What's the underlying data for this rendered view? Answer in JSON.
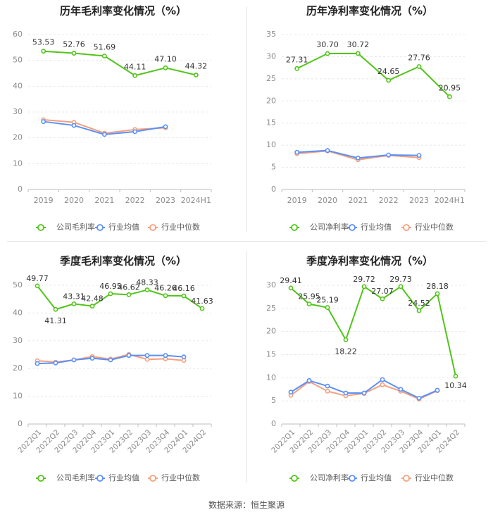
{
  "colors": {
    "company": "#52C41A",
    "industry_avg": "#5B8FF9",
    "industry_median": "#F4A07E",
    "grid": "#e8e8e8",
    "axis_text": "#8c8c8c",
    "label_text": "#333333"
  },
  "source": "数据来源：恒生聚源",
  "chart_data": [
    {
      "type": "line",
      "title": "历年毛利率变化情况（%）",
      "categories": [
        "2019",
        "2020",
        "2021",
        "2022",
        "2023",
        "2024H1"
      ],
      "ylim": [
        0,
        60
      ],
      "yticks": [
        "0",
        "10",
        "20",
        "30",
        "40",
        "50",
        "60"
      ],
      "series": [
        {
          "name": "公司毛利率",
          "key": "company",
          "values": [
            53.53,
            52.76,
            51.69,
            44.11,
            47.1,
            44.32
          ],
          "labels": [
            "53.53",
            "52.76",
            "51.69",
            "44.11",
            "47.10",
            "44.32"
          ]
        },
        {
          "name": "行业均值",
          "key": "industry_avg",
          "values": [
            26.3,
            24.8,
            21.3,
            22.4,
            24.3,
            null
          ]
        },
        {
          "name": "行业中位数",
          "key": "industry_median",
          "values": [
            27.0,
            26.0,
            21.8,
            23.2,
            23.9,
            null
          ]
        }
      ]
    },
    {
      "type": "line",
      "title": "历年净利率变化情况（%）",
      "categories": [
        "2019",
        "2020",
        "2021",
        "2022",
        "2023",
        "2024H1"
      ],
      "ylim": [
        0,
        35
      ],
      "yticks": [
        "0",
        "5",
        "10",
        "15",
        "20",
        "25",
        "30",
        "35"
      ],
      "series": [
        {
          "name": "公司净利率",
          "key": "company",
          "values": [
            27.31,
            30.7,
            30.72,
            24.65,
            27.76,
            20.95
          ],
          "labels": [
            "27.31",
            "30.70",
            "30.72",
            "24.65",
            "27.76",
            "20.95"
          ]
        },
        {
          "name": "行业均值",
          "key": "industry_avg",
          "values": [
            8.4,
            8.8,
            7.1,
            7.8,
            7.7,
            null
          ]
        },
        {
          "name": "行业中位数",
          "key": "industry_median",
          "values": [
            8.1,
            8.7,
            6.7,
            7.7,
            7.2,
            null
          ]
        }
      ]
    },
    {
      "type": "line",
      "title": "季度毛利率变化情况（%）",
      "categories": [
        "2022Q1",
        "2022Q2",
        "2022Q3",
        "2022Q4",
        "2023Q1",
        "2023Q2",
        "2023Q3",
        "2023Q4",
        "2024Q1",
        "2024Q2"
      ],
      "ylim": [
        0,
        50
      ],
      "yticks": [
        "0",
        "10",
        "20",
        "30",
        "40",
        "50"
      ],
      "series": [
        {
          "name": "公司毛利率",
          "key": "company",
          "values": [
            49.77,
            41.31,
            43.31,
            42.48,
            46.95,
            46.62,
            48.33,
            46.26,
            46.16,
            41.63
          ],
          "labels": [
            "49.77",
            "41.31",
            "43.31",
            "42.48",
            "46.95",
            "46.62",
            "48.33",
            "46.26",
            "46.16",
            "41.63"
          ]
        },
        {
          "name": "行业均值",
          "key": "industry_avg",
          "values": [
            21.8,
            22.0,
            23.1,
            23.7,
            23.1,
            24.7,
            24.7,
            24.7,
            24.2,
            null
          ]
        },
        {
          "name": "行业中位数",
          "key": "industry_median",
          "values": [
            22.8,
            22.3,
            23.1,
            24.3,
            23.4,
            25.1,
            23.3,
            23.5,
            22.9,
            null
          ]
        }
      ]
    },
    {
      "type": "line",
      "title": "季度净利率变化情况（%）",
      "categories": [
        "2022Q1",
        "2022Q2",
        "2022Q3",
        "2022Q4",
        "2023Q1",
        "2023Q2",
        "2023Q3",
        "2023Q4",
        "2024Q1",
        "2024Q2"
      ],
      "ylim": [
        0,
        30
      ],
      "yticks": [
        "0",
        "5",
        "10",
        "15",
        "20",
        "25",
        "30"
      ],
      "series": [
        {
          "name": "公司净利率",
          "key": "company",
          "values": [
            29.41,
            25.95,
            25.19,
            18.22,
            29.72,
            27.07,
            29.73,
            24.52,
            28.18,
            10.34
          ],
          "labels": [
            "29.41",
            "25.95",
            "25.19",
            "18.22",
            "29.72",
            "27.07",
            "29.73",
            "24.52",
            "28.18",
            "10.34"
          ]
        },
        {
          "name": "行业均值",
          "key": "industry_avg",
          "values": [
            6.9,
            9.4,
            8.2,
            6.7,
            6.7,
            9.6,
            7.5,
            5.6,
            7.3,
            null
          ]
        },
        {
          "name": "行业中位数",
          "key": "industry_median",
          "values": [
            6.2,
            9.2,
            7.1,
            6.1,
            6.6,
            8.5,
            7.1,
            5.4,
            7.2,
            null
          ]
        }
      ]
    }
  ]
}
